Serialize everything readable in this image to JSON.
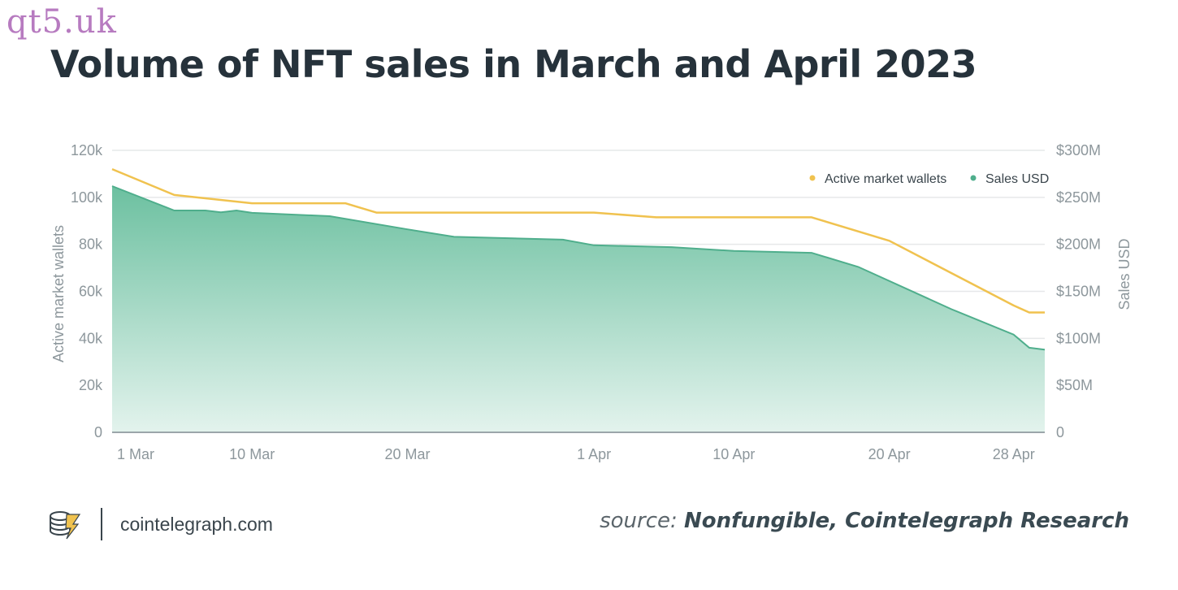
{
  "watermark": "qt5.uk",
  "title": "Volume of NFT sales in March and April 2023",
  "footer": {
    "site": "cointelegraph.com",
    "source_prefix": "source:",
    "source_name": "Nonfungible, Cointelegraph Research"
  },
  "colors": {
    "wallets_line": "#f0c24f",
    "sales_fill_top": "#6cc0a0",
    "sales_fill_bottom": "#e3f3ed",
    "sales_line": "#4fae8c",
    "grid": "#e6e8e9",
    "axis": "#8d979c"
  },
  "chart_data": {
    "type": "area",
    "x_range": [
      "2023-03-01",
      "2023-04-30"
    ],
    "x_ticks": [
      {
        "date": "2023-03-01",
        "label": "1 Mar"
      },
      {
        "date": "2023-03-10",
        "label": "10 Mar"
      },
      {
        "date": "2023-03-20",
        "label": "20 Mar"
      },
      {
        "date": "2023-04-01",
        "label": "1 Apr"
      },
      {
        "date": "2023-04-10",
        "label": "10 Apr"
      },
      {
        "date": "2023-04-20",
        "label": "20 Apr"
      },
      {
        "date": "2023-04-28",
        "label": "28 Apr"
      }
    ],
    "y_left": {
      "label": "Active market wallets",
      "min": 0,
      "max": 120000,
      "ticks": [
        0,
        20000,
        40000,
        60000,
        80000,
        100000,
        120000
      ],
      "tick_labels": [
        "0",
        "20k",
        "40k",
        "60k",
        "80k",
        "100k",
        "120k"
      ]
    },
    "y_right": {
      "label": "Sales USD",
      "min": 0,
      "max": 300000000,
      "ticks": [
        0,
        50000000,
        100000000,
        150000000,
        200000000,
        250000000,
        300000000
      ],
      "tick_labels": [
        "0",
        "$50M",
        "$100M",
        "$150M",
        "$200M",
        "$250M",
        "$300M"
      ]
    },
    "legend_position": "top-right",
    "grid": true,
    "series": [
      {
        "name": "Active market wallets",
        "type": "line",
        "axis": "left",
        "points": [
          [
            "2023-03-01",
            112000
          ],
          [
            "2023-03-05",
            101000
          ],
          [
            "2023-03-10",
            97500
          ],
          [
            "2023-03-16",
            97500
          ],
          [
            "2023-03-18",
            93500
          ],
          [
            "2023-04-01",
            93500
          ],
          [
            "2023-04-05",
            91500
          ],
          [
            "2023-04-15",
            91500
          ],
          [
            "2023-04-20",
            81500
          ],
          [
            "2023-04-28",
            54000
          ],
          [
            "2023-04-29",
            51000
          ],
          [
            "2023-04-30",
            51000
          ]
        ]
      },
      {
        "name": "Sales USD",
        "type": "area",
        "axis": "right",
        "points": [
          [
            "2023-03-01",
            262000000
          ],
          [
            "2023-03-05",
            236000000
          ],
          [
            "2023-03-07",
            236000000
          ],
          [
            "2023-03-08",
            234000000
          ],
          [
            "2023-03-09",
            236000000
          ],
          [
            "2023-03-10",
            233500000
          ],
          [
            "2023-03-15",
            230000000
          ],
          [
            "2023-03-20",
            216000000
          ],
          [
            "2023-03-23",
            208000000
          ],
          [
            "2023-03-30",
            205000000
          ],
          [
            "2023-04-01",
            199000000
          ],
          [
            "2023-04-06",
            197000000
          ],
          [
            "2023-04-10",
            193000000
          ],
          [
            "2023-04-15",
            191000000
          ],
          [
            "2023-04-18",
            176000000
          ],
          [
            "2023-04-24",
            131000000
          ],
          [
            "2023-04-28",
            104000000
          ],
          [
            "2023-04-29",
            90000000
          ],
          [
            "2023-04-30",
            88000000
          ]
        ]
      }
    ]
  }
}
